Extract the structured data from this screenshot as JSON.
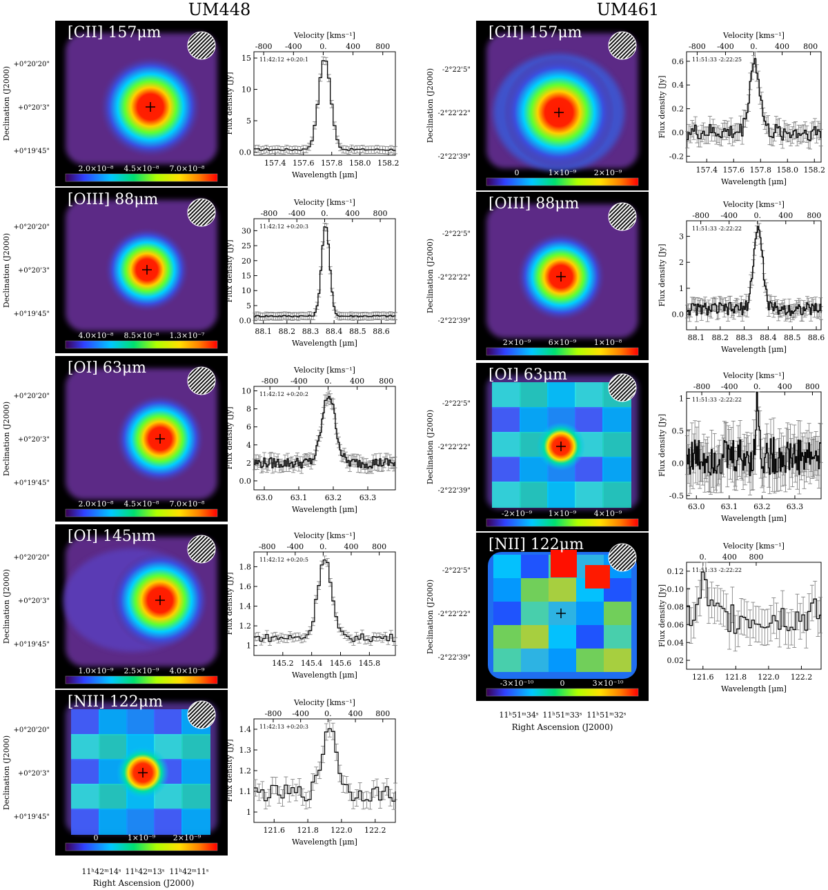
{
  "titles": {
    "left": "UM448",
    "right": "UM461"
  },
  "ra_axis": {
    "left": {
      "ticks": [
        "11ʰ42ᵐ14ˢ",
        "11ʰ42ᵐ13ˢ",
        "11ʰ42ᵐ11ˢ"
      ],
      "label": "Right Ascension (J2000)"
    },
    "right": {
      "ticks": [
        "11ʰ51ᵐ34ˢ",
        "11ʰ51ᵐ33ˢ",
        "11ʰ51ᵐ32ˢ"
      ],
      "label": "Right Ascension (J2000)"
    }
  },
  "dec_axis": {
    "label": "Declination (J2000)",
    "left_ticks": [
      "+0°20'20\"",
      "+0°20'3\"",
      "+0°19'45\""
    ],
    "right_ticks": [
      "-2°22'5\"",
      "-2°22'22\"",
      "-2°22'39\""
    ]
  },
  "spectrum_axes": {
    "velocity_label": "Velocity [kms⁻¹]",
    "velocity_ticks": [
      "-800",
      "-400",
      "0.",
      "400",
      "800"
    ],
    "flux_label": "Flux density [Jy]",
    "wavelength_label": "Wavelength [μm]"
  },
  "maps": [
    {
      "galaxy": "UM448",
      "line": "[CII] 157μm",
      "colorbar": [
        "2.0×10⁻⁸",
        "4.5×10⁻⁸",
        "7.0×10⁻⁸"
      ],
      "morphology": "compact"
    },
    {
      "galaxy": "UM448",
      "line": "[OIII] 88μm",
      "colorbar": [
        "4.0×10⁻⁸",
        "8.5×10⁻⁸",
        "1.3×10⁻⁷"
      ],
      "morphology": "compact"
    },
    {
      "galaxy": "UM448",
      "line": "[OI] 63μm",
      "colorbar": [
        "2.0×10⁻⁸",
        "4.5×10⁻⁸",
        "7.0×10⁻⁸"
      ],
      "morphology": "compact"
    },
    {
      "galaxy": "UM448",
      "line": "[OI] 145μm",
      "colorbar": [
        "1.0×10⁻⁹",
        "2.5×10⁻⁹",
        "4.0×10⁻⁹"
      ],
      "morphology": "compact"
    },
    {
      "galaxy": "UM448",
      "line": "[NII] 122μm",
      "colorbar": [
        "0",
        "1×10⁻⁹",
        "2×10⁻⁹"
      ],
      "morphology": "patchy"
    },
    {
      "galaxy": "UM461",
      "line": "[CII] 157μm",
      "colorbar": [
        "0",
        "1×10⁻⁹",
        "2×10⁻⁹"
      ],
      "morphology": "diffuse"
    },
    {
      "galaxy": "UM461",
      "line": "[OIII] 88μm",
      "colorbar": [
        "2×10⁻⁹",
        "6×10⁻⁹",
        "1×10⁻⁸"
      ],
      "morphology": "compact"
    },
    {
      "galaxy": "UM461",
      "line": "[OI] 63μm",
      "colorbar": [
        "-2×10⁻⁹",
        "1×10⁻⁹",
        "4×10⁻⁹"
      ],
      "morphology": "patchy"
    },
    {
      "galaxy": "UM461",
      "line": "[NII] 122μm",
      "colorbar": [
        "-3×10⁻¹⁰",
        "0",
        "3×10⁻¹⁰"
      ],
      "morphology": "noisy"
    }
  ],
  "chart_data": [
    {
      "type": "line",
      "galaxy": "UM448",
      "line": "[CII] 157μm",
      "annotation": "11:42:12 +0:20:1",
      "xlabel": "Wavelength [μm]",
      "ylabel": "Flux density [Jy]",
      "xlim": [
        157.25,
        158.25
      ],
      "ylim": [
        -0.5,
        16
      ],
      "xticks": [
        157.4,
        157.6,
        157.8,
        158.0,
        158.2
      ],
      "yticks": [
        0,
        5,
        10,
        15
      ],
      "center": 157.74,
      "fwhm": 0.1,
      "peak": 15,
      "continuum": 0.4,
      "noise": 0.15,
      "step": 0.02
    },
    {
      "type": "line",
      "galaxy": "UM448",
      "line": "[OIII] 88μm",
      "annotation": "11:42:12 +0:20:3",
      "xlabel": "Wavelength [μm]",
      "ylabel": "Flux density [Jy]",
      "xlim": [
        88.06,
        88.66
      ],
      "ylim": [
        -1,
        34
      ],
      "xticks": [
        88.1,
        88.2,
        88.3,
        88.4,
        88.5,
        88.6
      ],
      "yticks": [
        0,
        5,
        10,
        15,
        20,
        25,
        30
      ],
      "center": 88.36,
      "fwhm": 0.04,
      "peak": 32,
      "continuum": 1.5,
      "noise": 0.3,
      "step": 0.008
    },
    {
      "type": "line",
      "galaxy": "UM448",
      "line": "[OI] 63μm",
      "annotation": "11:42:12 +0:20:2",
      "xlabel": "Wavelength [μm]",
      "ylabel": "Flux density [Jy]",
      "xlim": [
        62.97,
        63.38
      ],
      "ylim": [
        -1,
        10.5
      ],
      "xticks": [
        63.0,
        63.1,
        63.2,
        63.3
      ],
      "yticks": [
        0,
        2,
        4,
        6,
        8,
        10
      ],
      "center": 63.185,
      "fwhm": 0.045,
      "peak": 9.6,
      "continuum": 2,
      "noise": 0.6,
      "step": 0.004
    },
    {
      "type": "line",
      "galaxy": "UM448",
      "line": "[OI] 145μm",
      "annotation": "11:42:12 +0:20:5",
      "xlabel": "Wavelength [μm]",
      "ylabel": "Flux density [Jy]",
      "xlim": [
        145.0,
        145.98
      ],
      "ylim": [
        0.9,
        1.95
      ],
      "xticks": [
        145.2,
        145.4,
        145.6,
        145.8
      ],
      "yticks": [
        1.0,
        1.2,
        1.4,
        1.6,
        1.8
      ],
      "center": 145.48,
      "fwhm": 0.11,
      "peak": 1.9,
      "continuum": 1.08,
      "noise": 0.04,
      "step": 0.02
    },
    {
      "type": "line",
      "galaxy": "UM448",
      "line": "[NII] 122μm",
      "annotation": "11:42:13 +0:20:3",
      "xlabel": "Wavelength [μm]",
      "ylabel": "Flux density [Jy]",
      "xlim": [
        121.48,
        122.32
      ],
      "ylim": [
        0.95,
        1.45
      ],
      "xticks": [
        121.6,
        121.8,
        122.0,
        122.2
      ],
      "yticks": [
        1.0,
        1.1,
        1.2,
        1.3,
        1.4
      ],
      "center": 121.92,
      "fwhm": 0.1,
      "peak": 1.42,
      "continuum": 1.09,
      "noise": 0.04,
      "step": 0.02
    },
    {
      "type": "line",
      "galaxy": "UM461",
      "line": "[CII] 157μm",
      "annotation": "11:51:33 -2:22:25",
      "xlabel": "Wavelength [μm]",
      "ylabel": "Flux density [Jy]",
      "xlim": [
        157.25,
        158.25
      ],
      "ylim": [
        -0.25,
        0.68
      ],
      "xticks": [
        157.4,
        157.6,
        157.8,
        158.0,
        158.2
      ],
      "yticks": [
        -0.2,
        0.0,
        0.2,
        0.4,
        0.6
      ],
      "center": 157.75,
      "fwhm": 0.09,
      "peak": 0.6,
      "continuum": 0.0,
      "noise": 0.07,
      "step": 0.012
    },
    {
      "type": "line",
      "galaxy": "UM461",
      "line": "[OIII] 88μm",
      "annotation": "11:51:33 -2:22:22",
      "xlabel": "Wavelength [μm]",
      "ylabel": "Flux density [Jy]",
      "xlim": [
        88.06,
        88.62
      ],
      "ylim": [
        -0.6,
        3.6
      ],
      "xticks": [
        88.1,
        88.2,
        88.3,
        88.4,
        88.5,
        88.6
      ],
      "yticks": [
        0,
        1,
        2,
        3
      ],
      "center": 88.355,
      "fwhm": 0.045,
      "peak": 3.3,
      "continuum": 0.2,
      "noise": 0.25,
      "step": 0.005
    },
    {
      "type": "line",
      "galaxy": "UM461",
      "line": "[OI] 63μm",
      "annotation": "11:51:33 -2:22:22",
      "xlabel": "Wavelength [μm]",
      "ylabel": "Flux density [Jy]",
      "xlim": [
        62.97,
        63.38
      ],
      "ylim": [
        -0.55,
        1.1
      ],
      "xticks": [
        63.0,
        63.1,
        63.2,
        63.3
      ],
      "yticks": [
        -0.5,
        0.0,
        0.5,
        1.0
      ],
      "center": 63.185,
      "fwhm": 0.01,
      "peak": 1.0,
      "continuum": 0.1,
      "noise": 0.3,
      "step": 0.003
    },
    {
      "type": "line",
      "galaxy": "UM461",
      "line": "[NII] 122μm",
      "annotation": "11:51:33 -2:22:22",
      "xlabel": "Wavelength [μm]",
      "ylabel": "Flux density [Jy]",
      "xlim": [
        121.5,
        122.32
      ],
      "ylim": [
        0.01,
        0.13
      ],
      "xticks": [
        121.6,
        121.8,
        122.0,
        122.2
      ],
      "yticks": [
        0.02,
        0.04,
        0.06,
        0.08,
        0.1,
        0.12
      ],
      "center": 121.6,
      "fwhm": 0.05,
      "peak": 0.11,
      "continuum": 0.07,
      "noise": 0.02,
      "step": 0.018
    }
  ]
}
